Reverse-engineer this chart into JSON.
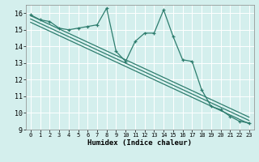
{
  "xlabel": "Humidex (Indice chaleur)",
  "ylabel": "",
  "xlim": [
    -0.5,
    23.5
  ],
  "ylim": [
    9,
    16.5
  ],
  "yticks": [
    9,
    10,
    11,
    12,
    13,
    14,
    15,
    16
  ],
  "xticks": [
    0,
    1,
    2,
    3,
    4,
    5,
    6,
    7,
    8,
    9,
    10,
    11,
    12,
    13,
    14,
    15,
    16,
    17,
    18,
    19,
    20,
    21,
    22,
    23
  ],
  "bg_color": "#d4efed",
  "grid_color": "#ffffff",
  "line_color": "#2e7d6e",
  "line1_x": [
    0,
    1,
    2,
    3,
    4,
    5,
    6,
    7,
    8,
    9,
    10,
    11,
    12,
    13,
    14,
    15,
    16,
    17,
    18,
    19,
    20,
    21,
    22,
    23
  ],
  "line1_y": [
    15.9,
    15.6,
    15.5,
    15.1,
    15.0,
    15.1,
    15.2,
    15.3,
    16.3,
    13.7,
    13.1,
    14.3,
    14.8,
    14.8,
    16.2,
    14.6,
    13.2,
    13.1,
    11.4,
    10.4,
    10.2,
    9.8,
    9.5,
    9.4
  ],
  "trend1_x": [
    0,
    23
  ],
  "trend1_y": [
    15.85,
    9.75
  ],
  "trend2_x": [
    0,
    23
  ],
  "trend2_y": [
    15.65,
    9.55
  ],
  "trend3_x": [
    0,
    23
  ],
  "trend3_y": [
    15.45,
    9.35
  ]
}
